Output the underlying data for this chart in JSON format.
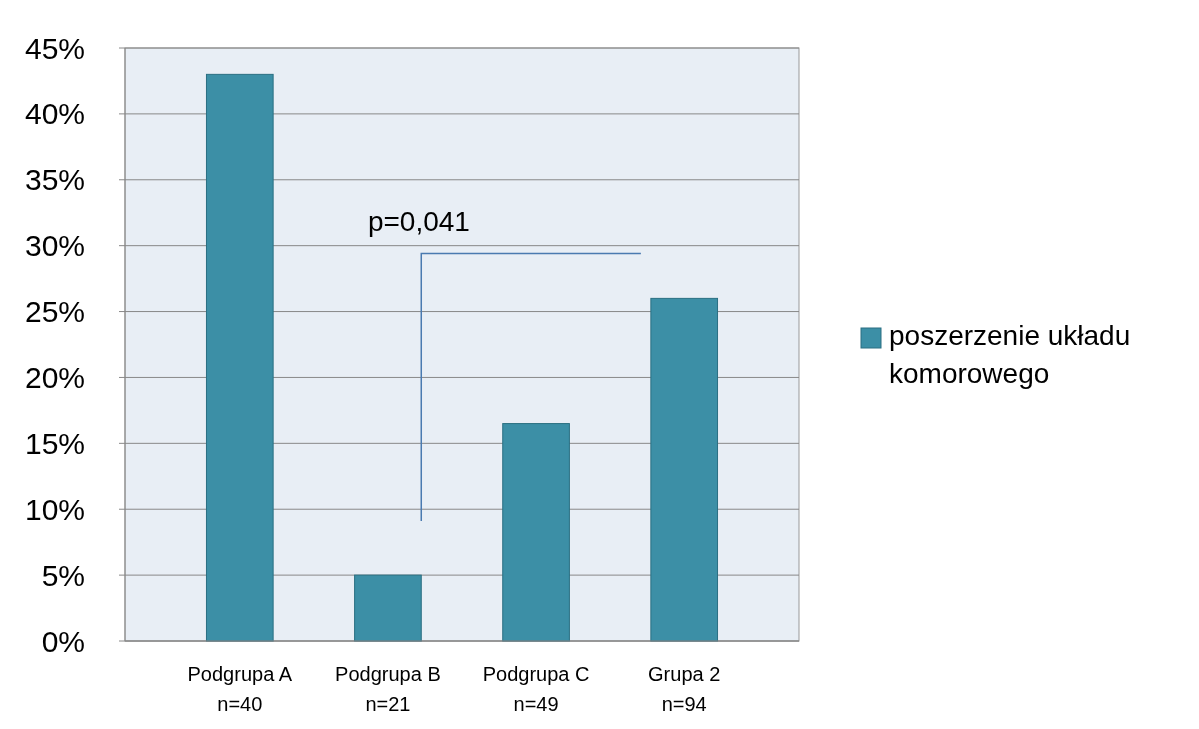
{
  "chart_data": {
    "type": "bar",
    "categories": [
      "Podgrupa A\nn=40",
      "Podgrupa B\nn=21",
      "Podgrupa C\nn=49",
      "Grupa 2\nn=94"
    ],
    "series": [
      {
        "name": "poszerzenie układu komorowego",
        "color": "#3c8fa6",
        "values": [
          43,
          5,
          16.5,
          26
        ]
      }
    ],
    "ylim": [
      0,
      45
    ],
    "yticks": [
      {
        "value": 0,
        "label": "0%"
      },
      {
        "value": 5,
        "label": "5%"
      },
      {
        "value": 10,
        "label": "10%"
      },
      {
        "value": 15,
        "label": "15%"
      },
      {
        "value": 20,
        "label": "20%"
      },
      {
        "value": 25,
        "label": "25%"
      },
      {
        "value": 30,
        "label": "30%"
      },
      {
        "value": 35,
        "label": "35%"
      },
      {
        "value": 40,
        "label": "40%"
      },
      {
        "value": 45,
        "label": "45%"
      }
    ],
    "grid": "y",
    "legend": "right",
    "annotations": [
      "p=0,041"
    ]
  }
}
